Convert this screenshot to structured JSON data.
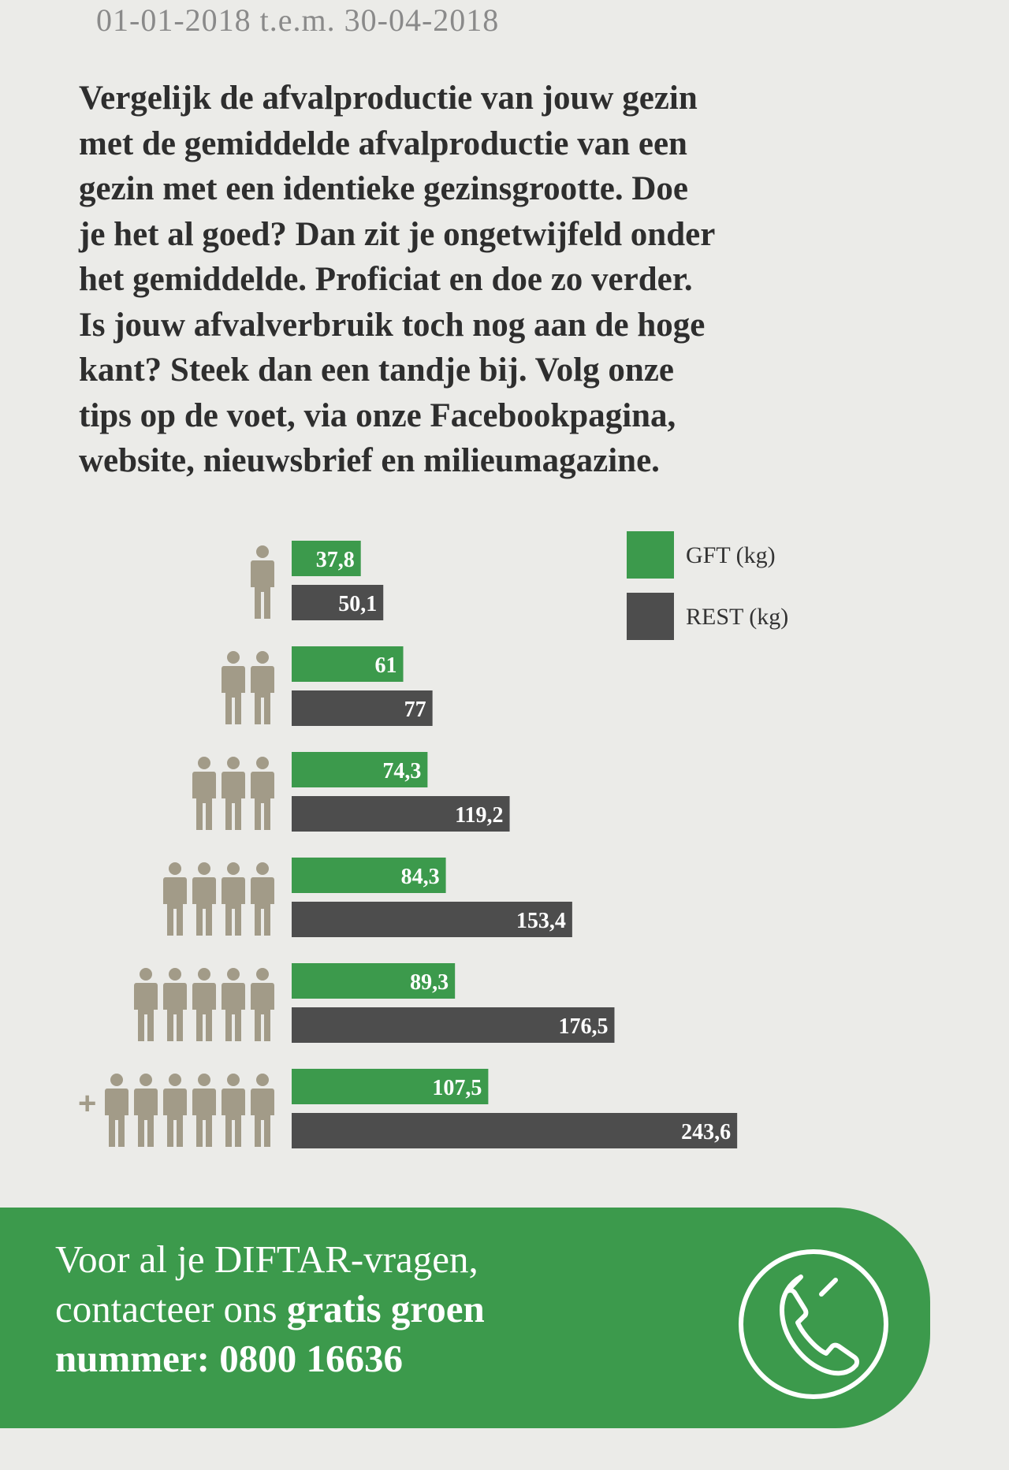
{
  "date_range": "01-01-2018 t.e.m. 30-04-2018",
  "intro_lines": [
    "Vergelijk de afvalproductie van jouw gezin",
    "met de gemiddelde afvalproductie van een",
    "gezin met een identieke gezinsgrootte. Doe",
    "je het al goed? Dan zit je ongetwijfeld onder",
    "het gemiddelde. Proficiat en doe zo verder.",
    "Is jouw afvalverbruik toch nog aan de hoge",
    "kant? Steek dan een tandje bij.  Volg onze",
    "tips op de voet, via onze Facebookpagina,",
    "website, nieuwsbrief en milieumagazine."
  ],
  "chart_data": {
    "type": "bar",
    "orientation": "horizontal",
    "categories": [
      "1 persoon",
      "2 personen",
      "3 personen",
      "4 personen",
      "5 personen",
      "6+ personen"
    ],
    "household_sizes": [
      1,
      2,
      3,
      4,
      5,
      6
    ],
    "series": [
      {
        "name": "GFT (kg)",
        "values": [
          37.8,
          61,
          74.3,
          84.3,
          89.3,
          107.5
        ],
        "labels": [
          "37,8",
          "61",
          "74,3",
          "84,3",
          "89,3",
          "107,5"
        ],
        "color": "#3c9a4c"
      },
      {
        "name": "REST (kg)",
        "values": [
          50.1,
          77,
          119.2,
          153.4,
          176.5,
          243.6
        ],
        "labels": [
          "50,1",
          "77",
          "119,2",
          "153,4",
          "176,5",
          "243,6"
        ],
        "color": "#4d4d4d"
      }
    ],
    "plus_marker": "+",
    "legend_position": "top-right",
    "xlim": [
      0,
      250
    ]
  },
  "contact": {
    "line1": "Voor al je DIFTAR-vragen,",
    "line2_normal": "contacteer ons ",
    "line2_bold": "gratis groen",
    "line3": "nummer: 0800 16636",
    "icon": "phone-icon"
  },
  "colors": {
    "background": "#ebebe8",
    "green": "#3c9a4c",
    "gray": "#4d4d4d",
    "person": "#a29b88"
  }
}
